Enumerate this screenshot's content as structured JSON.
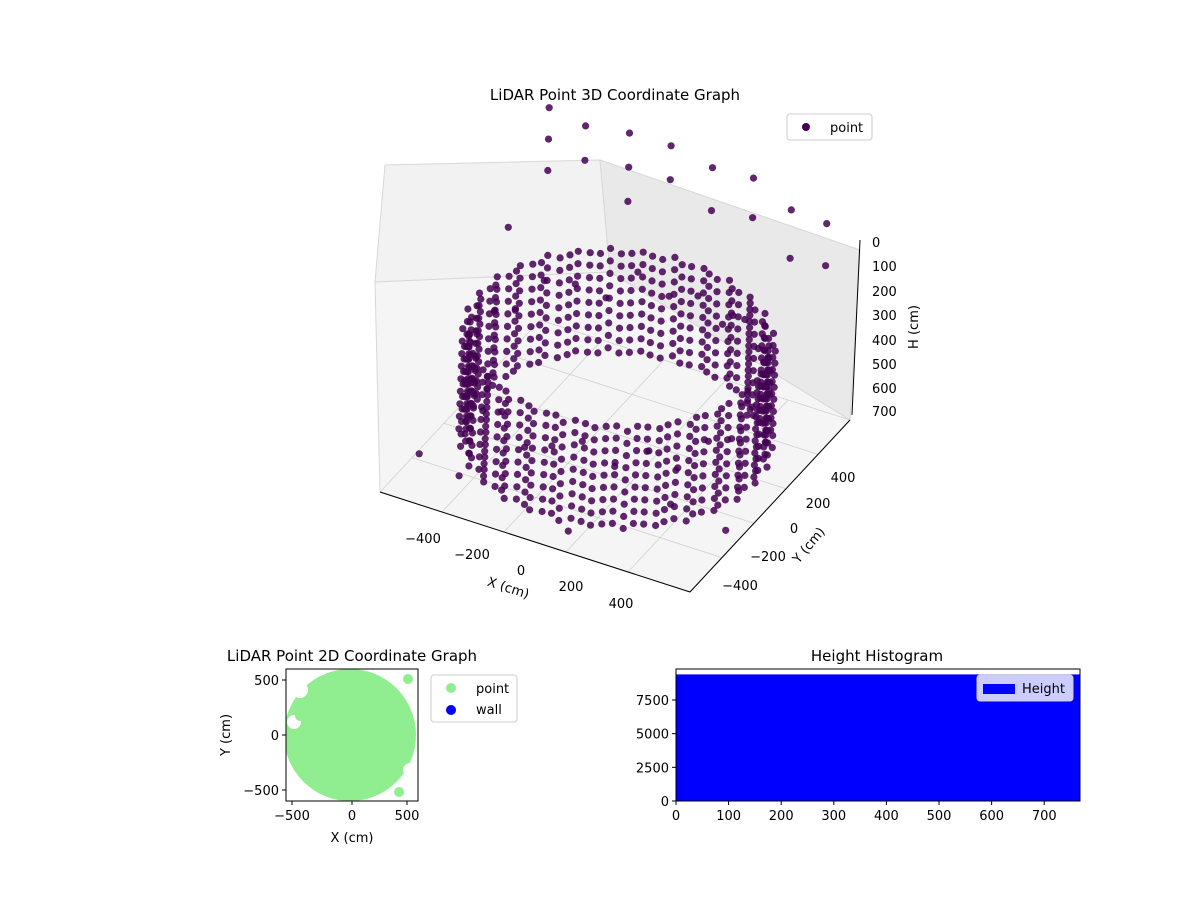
{
  "chart_data": [
    {
      "type": "scatter",
      "title": "LiDAR Point 3D Coordinate Graph",
      "xlabel": "X (cm)",
      "ylabel": "Y (cm)",
      "zlabel": "H (cm)",
      "projection": "3d",
      "xlim": [
        -550,
        550
      ],
      "ylim": [
        -550,
        550
      ],
      "zlim": [
        0,
        700
      ],
      "z_inverted": true,
      "xticks": [
        "−400",
        "−200",
        "0",
        "200",
        "400"
      ],
      "yticks": [
        "−400",
        "−200",
        "0",
        "200",
        "400"
      ],
      "zticks": [
        "0",
        "100",
        "200",
        "300",
        "400",
        "500",
        "600",
        "700"
      ],
      "legend": {
        "placement": "upper right",
        "entries": [
          "point"
        ]
      },
      "series": [
        {
          "name": "point",
          "color": "#440154",
          "description_shape": "dense ring of points with radius about 480 cm spanning heights 300 to 650 cm, plus scattered points and vertical columns up to the top",
          "points": [
            [
              480,
              0,
              420
            ],
            [
              470,
              100,
              380
            ],
            [
              440,
              190,
              450
            ],
            [
              390,
              280,
              400
            ],
            [
              320,
              350,
              430
            ],
            [
              240,
              410,
              390
            ],
            [
              140,
              455,
              460
            ],
            [
              40,
              478,
              410
            ],
            [
              -60,
              475,
              440
            ],
            [
              -160,
              450,
              380
            ],
            [
              -250,
              410,
              470
            ],
            [
              -330,
              350,
              420
            ],
            [
              -400,
              270,
              390
            ],
            [
              -450,
              170,
              450
            ],
            [
              -475,
              70,
              410
            ],
            [
              -480,
              -40,
              430
            ],
            [
              -460,
              -140,
              380
            ],
            [
              -420,
              -240,
              460
            ],
            [
              -360,
              -320,
              410
            ],
            [
              -280,
              -390,
              440
            ],
            [
              -190,
              -440,
              390
            ],
            [
              -90,
              -470,
              460
            ],
            [
              10,
              -480,
              420
            ],
            [
              110,
              -468,
              380
            ],
            [
              210,
              -432,
              450
            ],
            [
              300,
              -375,
              400
            ],
            [
              370,
              -305,
              470
            ],
            [
              430,
              -215,
              410
            ],
            [
              465,
              -120,
              440
            ],
            [
              478,
              -20,
              390
            ],
            [
              -520,
              520,
              0
            ],
            [
              -520,
              520,
              100
            ],
            [
              -520,
              520,
              200
            ],
            [
              -400,
              540,
              30
            ],
            [
              -400,
              540,
              140
            ],
            [
              -250,
              550,
              10
            ],
            [
              -250,
              550,
              120
            ],
            [
              -250,
              550,
              230
            ],
            [
              -100,
              545,
              0
            ],
            [
              -100,
              545,
              110
            ],
            [
              50,
              540,
              20
            ],
            [
              50,
              540,
              160
            ],
            [
              200,
              530,
              0
            ],
            [
              200,
              530,
              130
            ],
            [
              350,
              500,
              40
            ],
            [
              350,
              500,
              200
            ],
            [
              500,
              450,
              10
            ],
            [
              500,
              450,
              150
            ],
            [
              -300,
              -500,
              600
            ],
            [
              100,
              -520,
              650
            ],
            [
              420,
              -450,
              500
            ],
            [
              -540,
              -300,
              700
            ],
            [
              520,
              -250,
              660
            ],
            [
              -450,
              100,
              150
            ],
            [
              300,
              200,
              250
            ]
          ]
        }
      ]
    },
    {
      "type": "scatter",
      "title": "LiDAR Point 2D Coordinate Graph",
      "xlabel": "X (cm)",
      "ylabel": "Y (cm)",
      "xlim": [
        -600,
        600
      ],
      "ylim": [
        -600,
        600
      ],
      "xticks": [
        "−500",
        "0",
        "500"
      ],
      "yticks": [
        "−500",
        "0",
        "500"
      ],
      "legend": {
        "placement": "outside right",
        "entries": [
          "point",
          "wall"
        ]
      },
      "series": [
        {
          "name": "point",
          "color": "#90ee90",
          "shape": "filled disc of radius about 560 cm centered near origin"
        },
        {
          "name": "wall",
          "color": "#0000ff",
          "points": []
        }
      ]
    },
    {
      "type": "bar",
      "title": "Height Histogram",
      "xlabel": "",
      "ylabel": "",
      "xlim": [
        0,
        768
      ],
      "ylim": [
        0,
        9800
      ],
      "xticks": [
        "0",
        "100",
        "200",
        "300",
        "400",
        "500",
        "600",
        "700"
      ],
      "yticks": [
        "0",
        "2500",
        "5000",
        "7500"
      ],
      "legend": {
        "placement": "upper right",
        "entries": [
          "Height"
        ]
      },
      "series": [
        {
          "name": "Height",
          "color": "#0000ff",
          "bin_start": 0,
          "bin_end": 768,
          "value": 9400
        }
      ]
    }
  ]
}
